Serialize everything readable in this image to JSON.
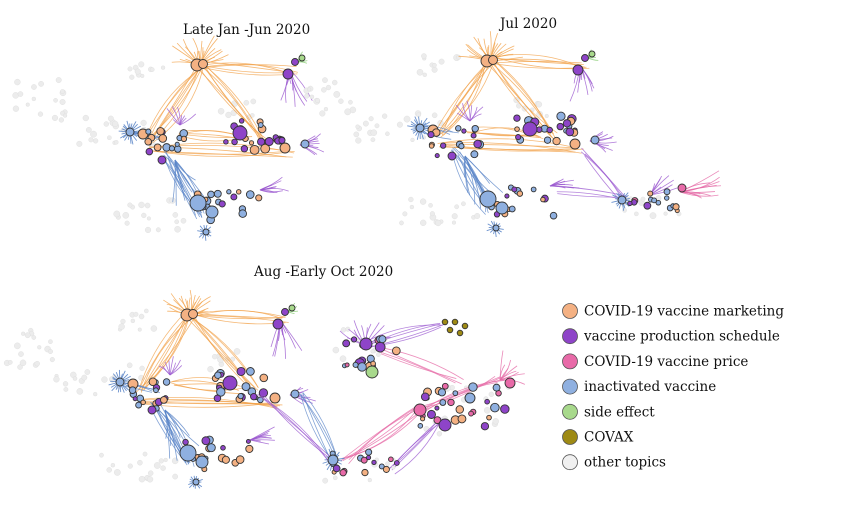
{
  "titles": {
    "p1": "Late Jan -Jun 2020",
    "p2": "Jul 2020",
    "p3": "Aug -Early Oct 2020"
  },
  "legend": [
    {
      "key": "marketing",
      "label": "COVID-19 vaccine marketing",
      "color": "#f4b183"
    },
    {
      "key": "production",
      "label": "vaccine production schedule",
      "color": "#8e44c8"
    },
    {
      "key": "price",
      "label": "COVID-19 vaccine price",
      "color": "#e86aa8"
    },
    {
      "key": "inactivated",
      "label": "inactivated vaccine",
      "color": "#8fb0e0"
    },
    {
      "key": "side",
      "label": "side effect",
      "color": "#a8d98c"
    },
    {
      "key": "covax",
      "label": "COVAX",
      "color": "#9e8a14"
    },
    {
      "key": "other",
      "label": "other topics",
      "color": "#f0f0f0"
    }
  ],
  "edge_colors": {
    "marketing": "#f2a24a",
    "production": "#9b59d0",
    "price": "#e56aa6",
    "inactivated": "#5b86c8",
    "side": "#7fc96a",
    "other": "#d6d6d6"
  }
}
